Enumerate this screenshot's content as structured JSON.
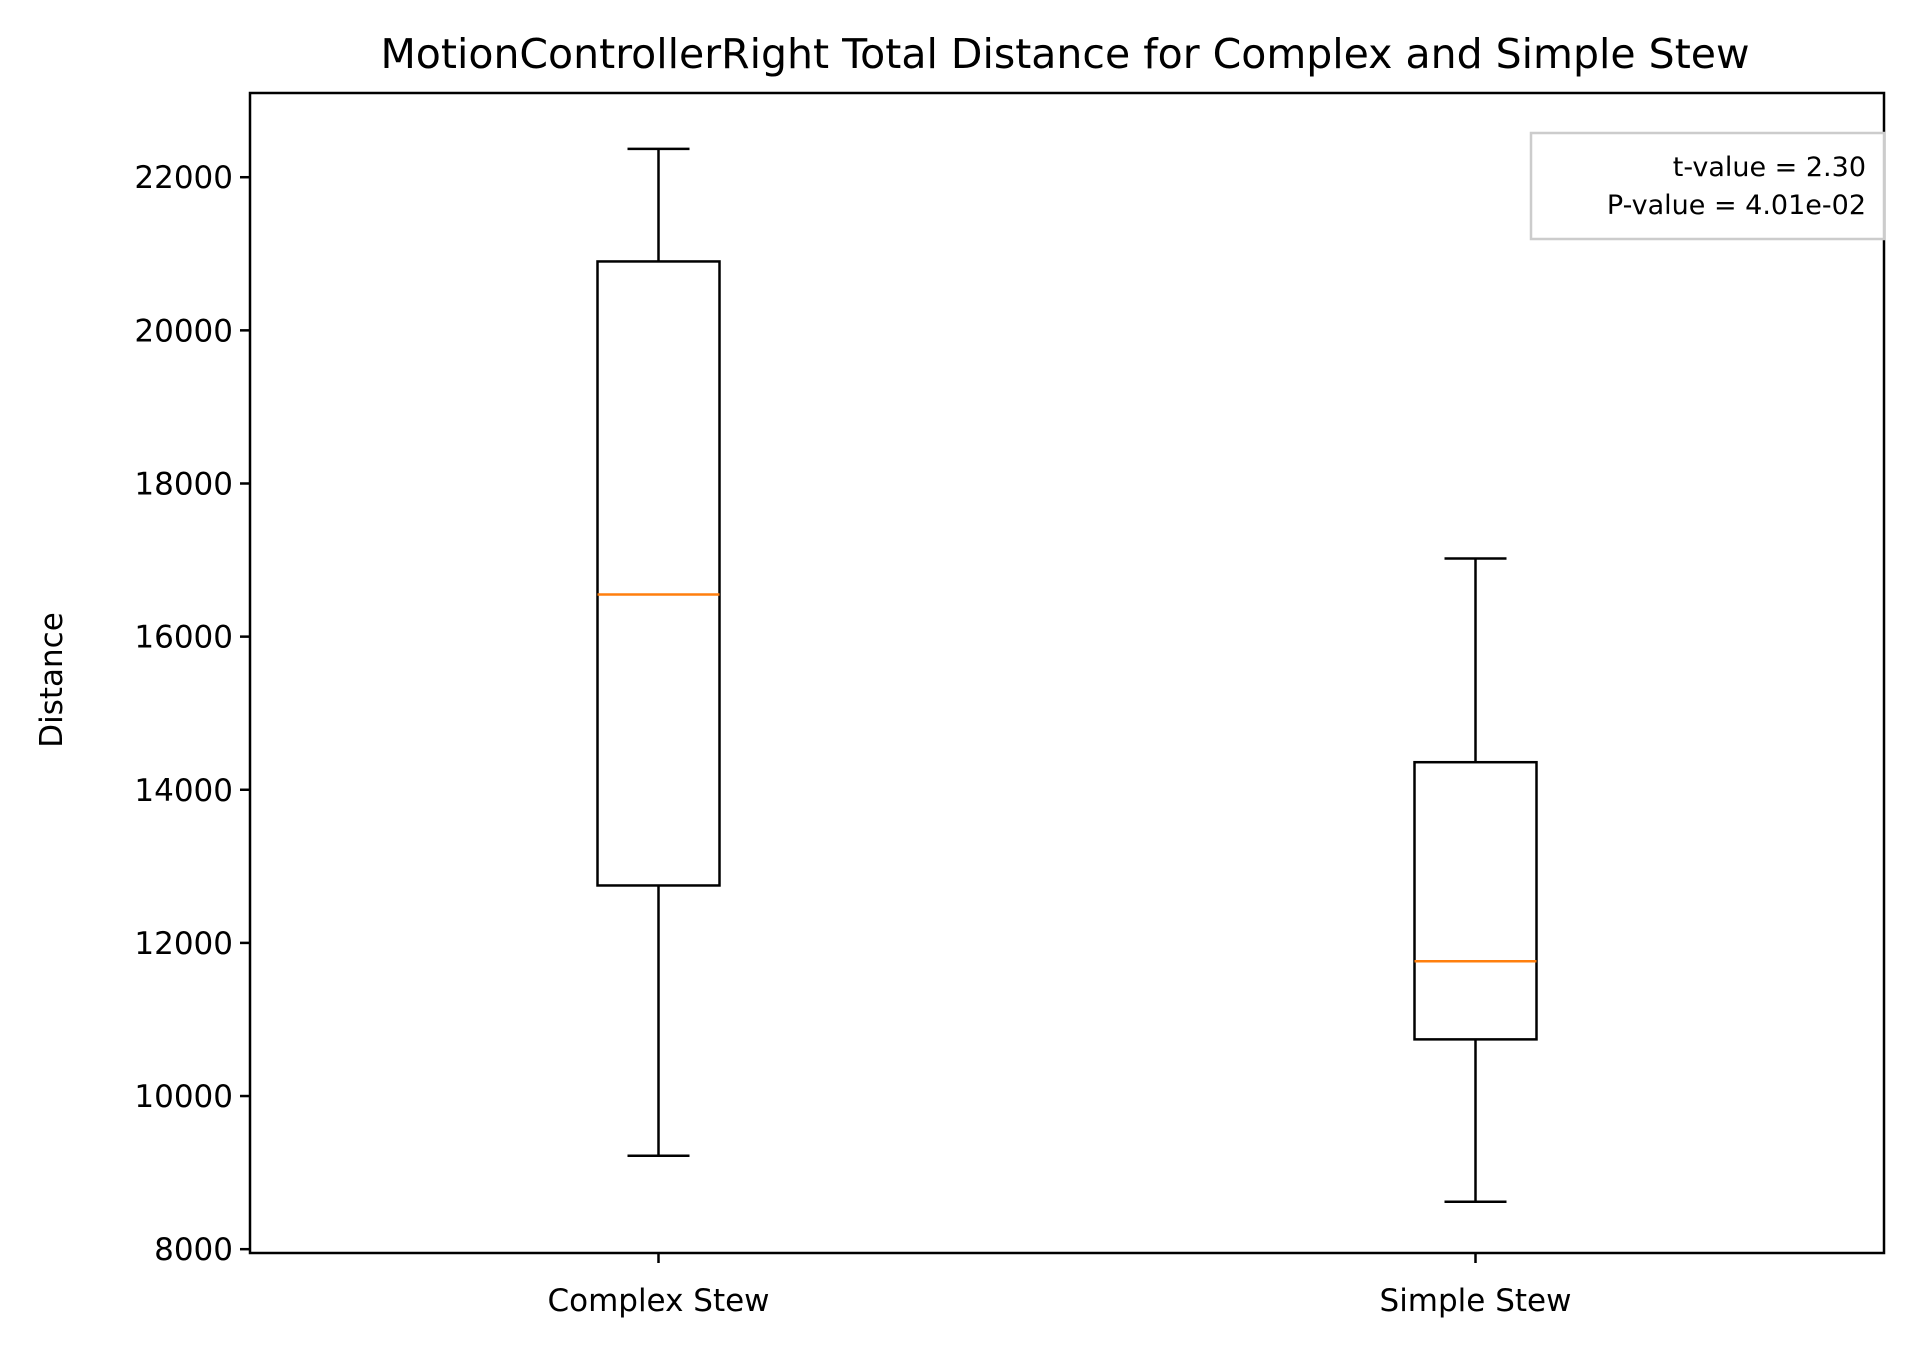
{
  "chart_data": {
    "type": "box",
    "title": "MotionControllerRight Total Distance for Complex and Simple Stew",
    "xlabel": "",
    "ylabel": "Distance",
    "ylim": [
      7950,
      23100
    ],
    "yticks": [
      8000,
      10000,
      12000,
      14000,
      16000,
      18000,
      20000,
      22000
    ],
    "ytick_labels": [
      "8000",
      "10000",
      "12000",
      "14000",
      "16000",
      "18000",
      "20000",
      "22000"
    ],
    "categories": [
      "Complex Stew",
      "Simple Stew"
    ],
    "boxes": [
      {
        "category": "Complex Stew",
        "whisker_low": 9220,
        "q1": 12750,
        "median": 16550,
        "q3": 20900,
        "whisker_high": 22370
      },
      {
        "category": "Simple Stew",
        "whisker_low": 8620,
        "q1": 10740,
        "median": 11760,
        "q3": 14360,
        "whisker_high": 17020
      }
    ],
    "annotation": {
      "lines": [
        "t-value = 2.30",
        "P-value = 4.01e-02"
      ],
      "placement": "top-right"
    },
    "grid": false,
    "colors": {
      "box": "#000000",
      "median": "#ff7f0e",
      "annotation_border": "#cccccc"
    }
  }
}
